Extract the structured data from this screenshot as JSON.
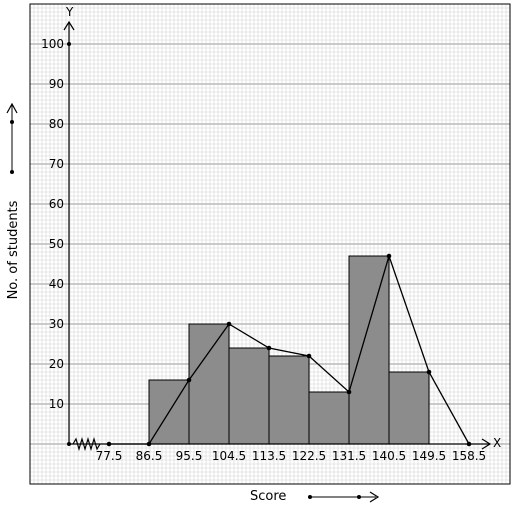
{
  "chart_data": {
    "type": "bar",
    "subtype": "histogram-with-frequency-polygon",
    "x_axis_letter": "X",
    "y_axis_letter": "Y",
    "xlabel": "Score",
    "ylabel": "No. of students",
    "ylim": [
      0,
      100
    ],
    "y_ticks": [
      10,
      20,
      30,
      40,
      50,
      60,
      70,
      80,
      90,
      100
    ],
    "x_ticks": [
      77.5,
      86.5,
      95.5,
      104.5,
      113.5,
      122.5,
      131.5,
      140.5,
      149.5,
      158.5
    ],
    "x_tick_labels": [
      "77.5",
      "86.5",
      "95.5",
      "104.5",
      "113.5",
      "122.5",
      "131.5",
      "140.5",
      "149.5",
      "158.5"
    ],
    "axis_break": "zigzag on x-axis near origin",
    "grid": true,
    "bar_color": "#8c8c8c",
    "series": [
      {
        "type": "bar",
        "bins": [
          [
            86.5,
            95.5
          ],
          [
            95.5,
            104.5
          ],
          [
            104.5,
            113.5
          ],
          [
            113.5,
            122.5
          ],
          [
            122.5,
            131.5
          ],
          [
            131.5,
            140.5
          ],
          [
            140.5,
            149.5
          ]
        ],
        "values": [
          16,
          30,
          24,
          22,
          13,
          47,
          18
        ]
      },
      {
        "type": "line",
        "x": [
          77.5,
          86.5,
          95.5,
          104.5,
          113.5,
          122.5,
          131.5,
          140.5,
          149.5,
          158.5
        ],
        "y": [
          0,
          0,
          16,
          30,
          24,
          22,
          13,
          47,
          18,
          0
        ]
      }
    ]
  }
}
